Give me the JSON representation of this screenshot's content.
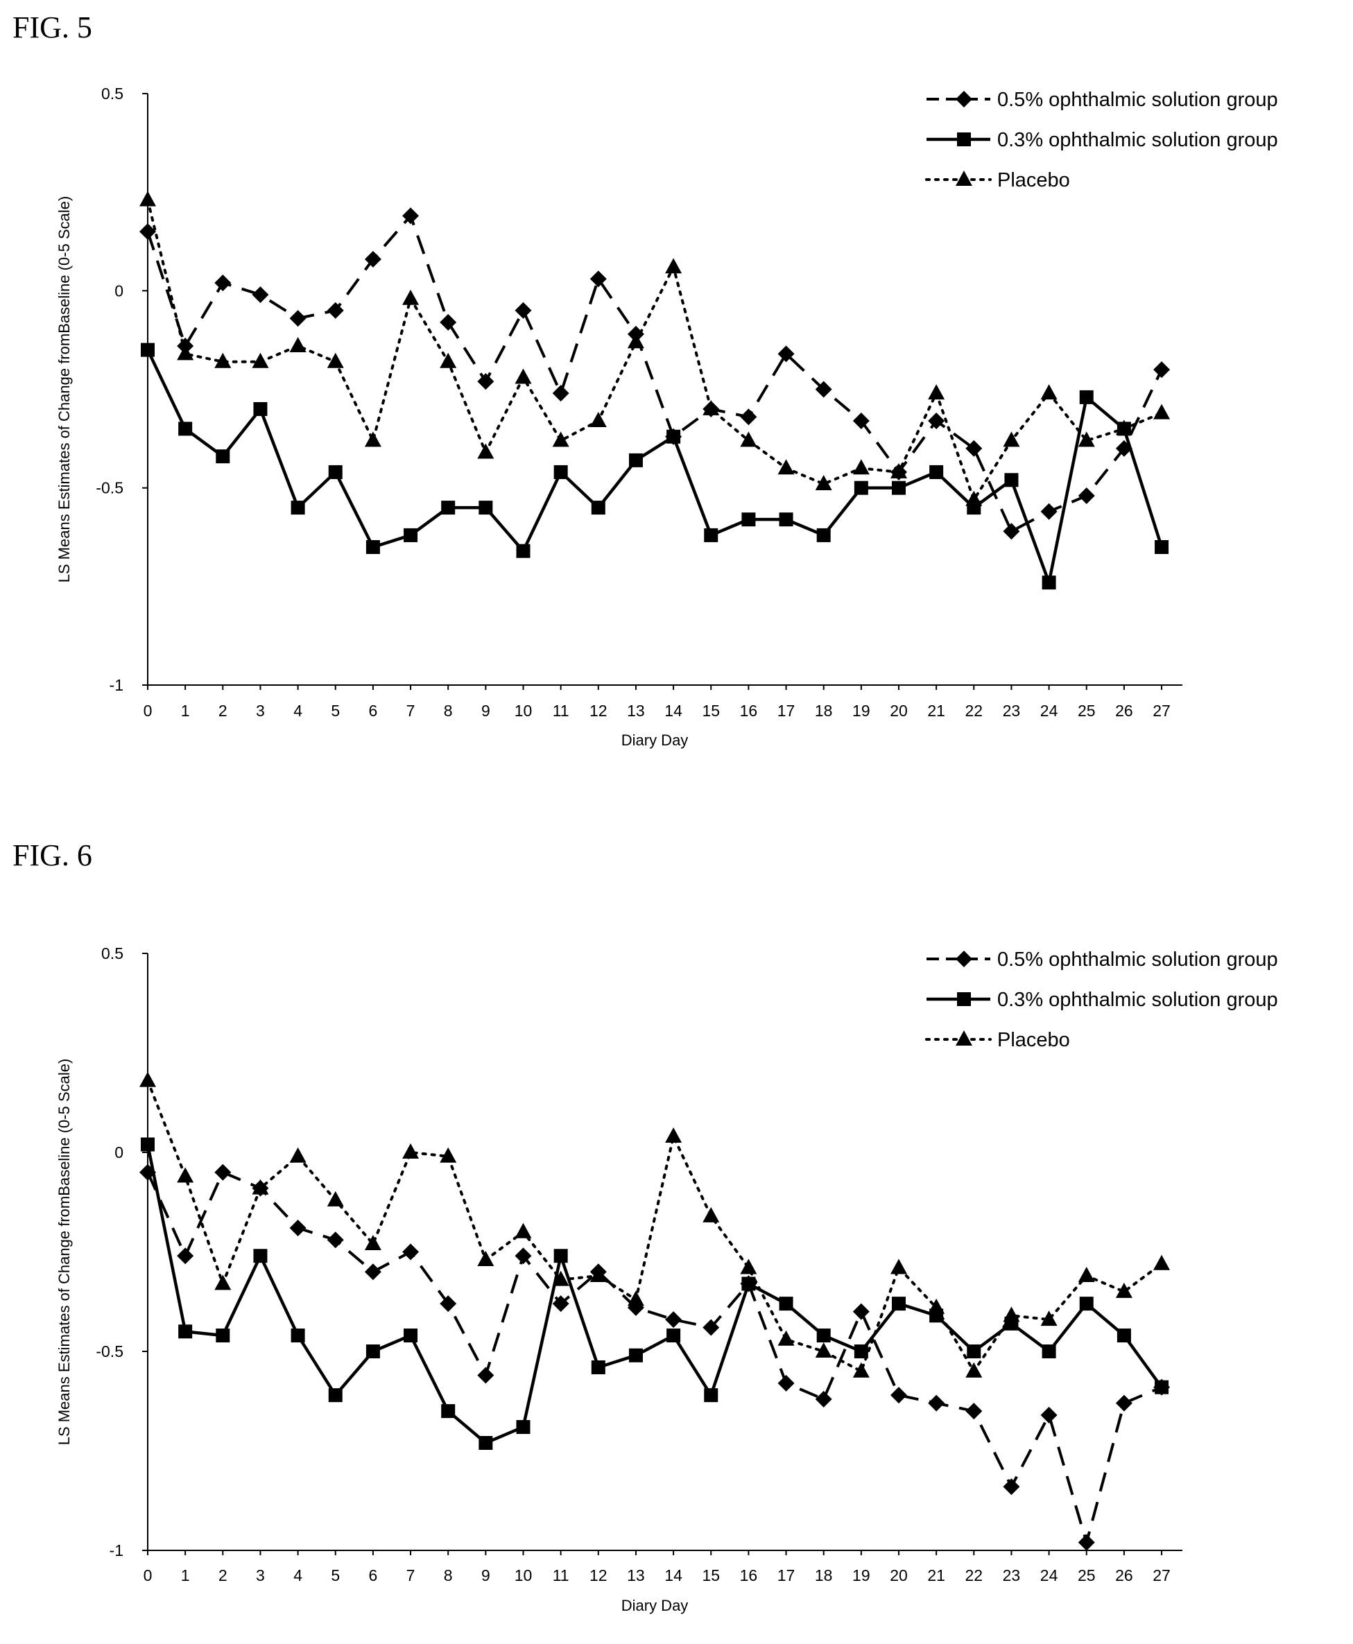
{
  "chart_data": [
    {
      "type": "line",
      "figure_label": "FIG. 5",
      "xlabel": "Diary Day",
      "ylabel": "LS Means Estimates of Change fromBaseline (0-5 Scale)",
      "ylim": [
        -1,
        0.5
      ],
      "yticks": [
        "0.5",
        "0",
        "-0.5",
        "-1"
      ],
      "x": [
        0,
        1,
        2,
        3,
        4,
        5,
        6,
        7,
        8,
        9,
        10,
        11,
        12,
        13,
        14,
        15,
        16,
        17,
        18,
        19,
        20,
        21,
        22,
        23,
        24,
        25,
        26,
        27
      ],
      "legend_position": "top-right",
      "grid": false,
      "series": [
        {
          "name": "0.5% ophthalmic solution group",
          "marker": "diamond",
          "dash": "dashed",
          "values": [
            0.15,
            -0.14,
            0.02,
            -0.01,
            -0.07,
            -0.05,
            0.08,
            0.19,
            -0.08,
            -0.23,
            -0.05,
            -0.26,
            0.03,
            -0.11,
            -0.37,
            -0.3,
            -0.32,
            -0.16,
            -0.25,
            -0.33,
            -0.46,
            -0.33,
            -0.4,
            -0.61,
            -0.56,
            -0.52,
            -0.4,
            -0.2
          ]
        },
        {
          "name": "0.3% ophthalmic solution group",
          "marker": "square",
          "dash": "solid",
          "values": [
            -0.15,
            -0.35,
            -0.42,
            -0.3,
            -0.55,
            -0.46,
            -0.65,
            -0.62,
            -0.55,
            -0.55,
            -0.66,
            -0.46,
            -0.55,
            -0.43,
            -0.37,
            -0.62,
            -0.58,
            -0.58,
            -0.62,
            -0.5,
            -0.5,
            -0.46,
            -0.55,
            -0.48,
            -0.74,
            -0.27,
            -0.35,
            -0.65
          ]
        },
        {
          "name": "Placebo",
          "marker": "triangle",
          "dash": "dotted",
          "values": [
            0.23,
            -0.16,
            -0.18,
            -0.18,
            -0.14,
            -0.18,
            -0.38,
            -0.02,
            -0.18,
            -0.41,
            -0.22,
            -0.38,
            -0.33,
            -0.13,
            0.06,
            -0.3,
            -0.38,
            -0.45,
            -0.49,
            -0.45,
            -0.46,
            -0.26,
            -0.53,
            -0.38,
            -0.26,
            -0.38,
            -0.35,
            -0.31
          ]
        }
      ]
    },
    {
      "type": "line",
      "figure_label": "FIG. 6",
      "xlabel": "Diary Day",
      "ylabel": "LS Means Estimates of Change fromBaseline (0-5 Scale)",
      "ylim": [
        -1,
        0.5
      ],
      "yticks": [
        "0.5",
        "0",
        "-0.5",
        "-1"
      ],
      "x": [
        0,
        1,
        2,
        3,
        4,
        5,
        6,
        7,
        8,
        9,
        10,
        11,
        12,
        13,
        14,
        15,
        16,
        17,
        18,
        19,
        20,
        21,
        22,
        23,
        24,
        25,
        26,
        27
      ],
      "legend_position": "top-right",
      "grid": false,
      "series": [
        {
          "name": "0.5% ophthalmic solution group",
          "marker": "diamond",
          "dash": "dashed",
          "values": [
            -0.05,
            -0.26,
            -0.05,
            -0.09,
            -0.19,
            -0.22,
            -0.3,
            -0.25,
            -0.38,
            -0.56,
            -0.26,
            -0.38,
            -0.3,
            -0.39,
            -0.42,
            -0.44,
            -0.33,
            -0.58,
            -0.62,
            -0.4,
            -0.61,
            -0.63,
            -0.65,
            -0.84,
            -0.66,
            -0.98,
            -0.63,
            -0.59
          ]
        },
        {
          "name": "0.3% ophthalmic solution group",
          "marker": "square",
          "dash": "solid",
          "values": [
            0.02,
            -0.45,
            -0.46,
            -0.26,
            -0.46,
            -0.61,
            -0.5,
            -0.46,
            -0.65,
            -0.73,
            -0.69,
            -0.26,
            -0.54,
            -0.51,
            -0.46,
            -0.61,
            -0.33,
            -0.38,
            -0.46,
            -0.5,
            -0.38,
            -0.41,
            -0.5,
            -0.43,
            -0.5,
            -0.38,
            -0.46,
            -0.59
          ]
        },
        {
          "name": "Placebo",
          "marker": "triangle",
          "dash": "dotted",
          "values": [
            0.18,
            -0.06,
            -0.33,
            -0.09,
            -0.01,
            -0.12,
            -0.23,
            0.0,
            -0.01,
            -0.27,
            -0.2,
            -0.32,
            -0.31,
            -0.37,
            0.04,
            -0.16,
            -0.29,
            -0.47,
            -0.5,
            -0.55,
            -0.29,
            -0.39,
            -0.55,
            -0.41,
            -0.42,
            -0.31,
            -0.35,
            -0.28
          ]
        }
      ]
    }
  ]
}
